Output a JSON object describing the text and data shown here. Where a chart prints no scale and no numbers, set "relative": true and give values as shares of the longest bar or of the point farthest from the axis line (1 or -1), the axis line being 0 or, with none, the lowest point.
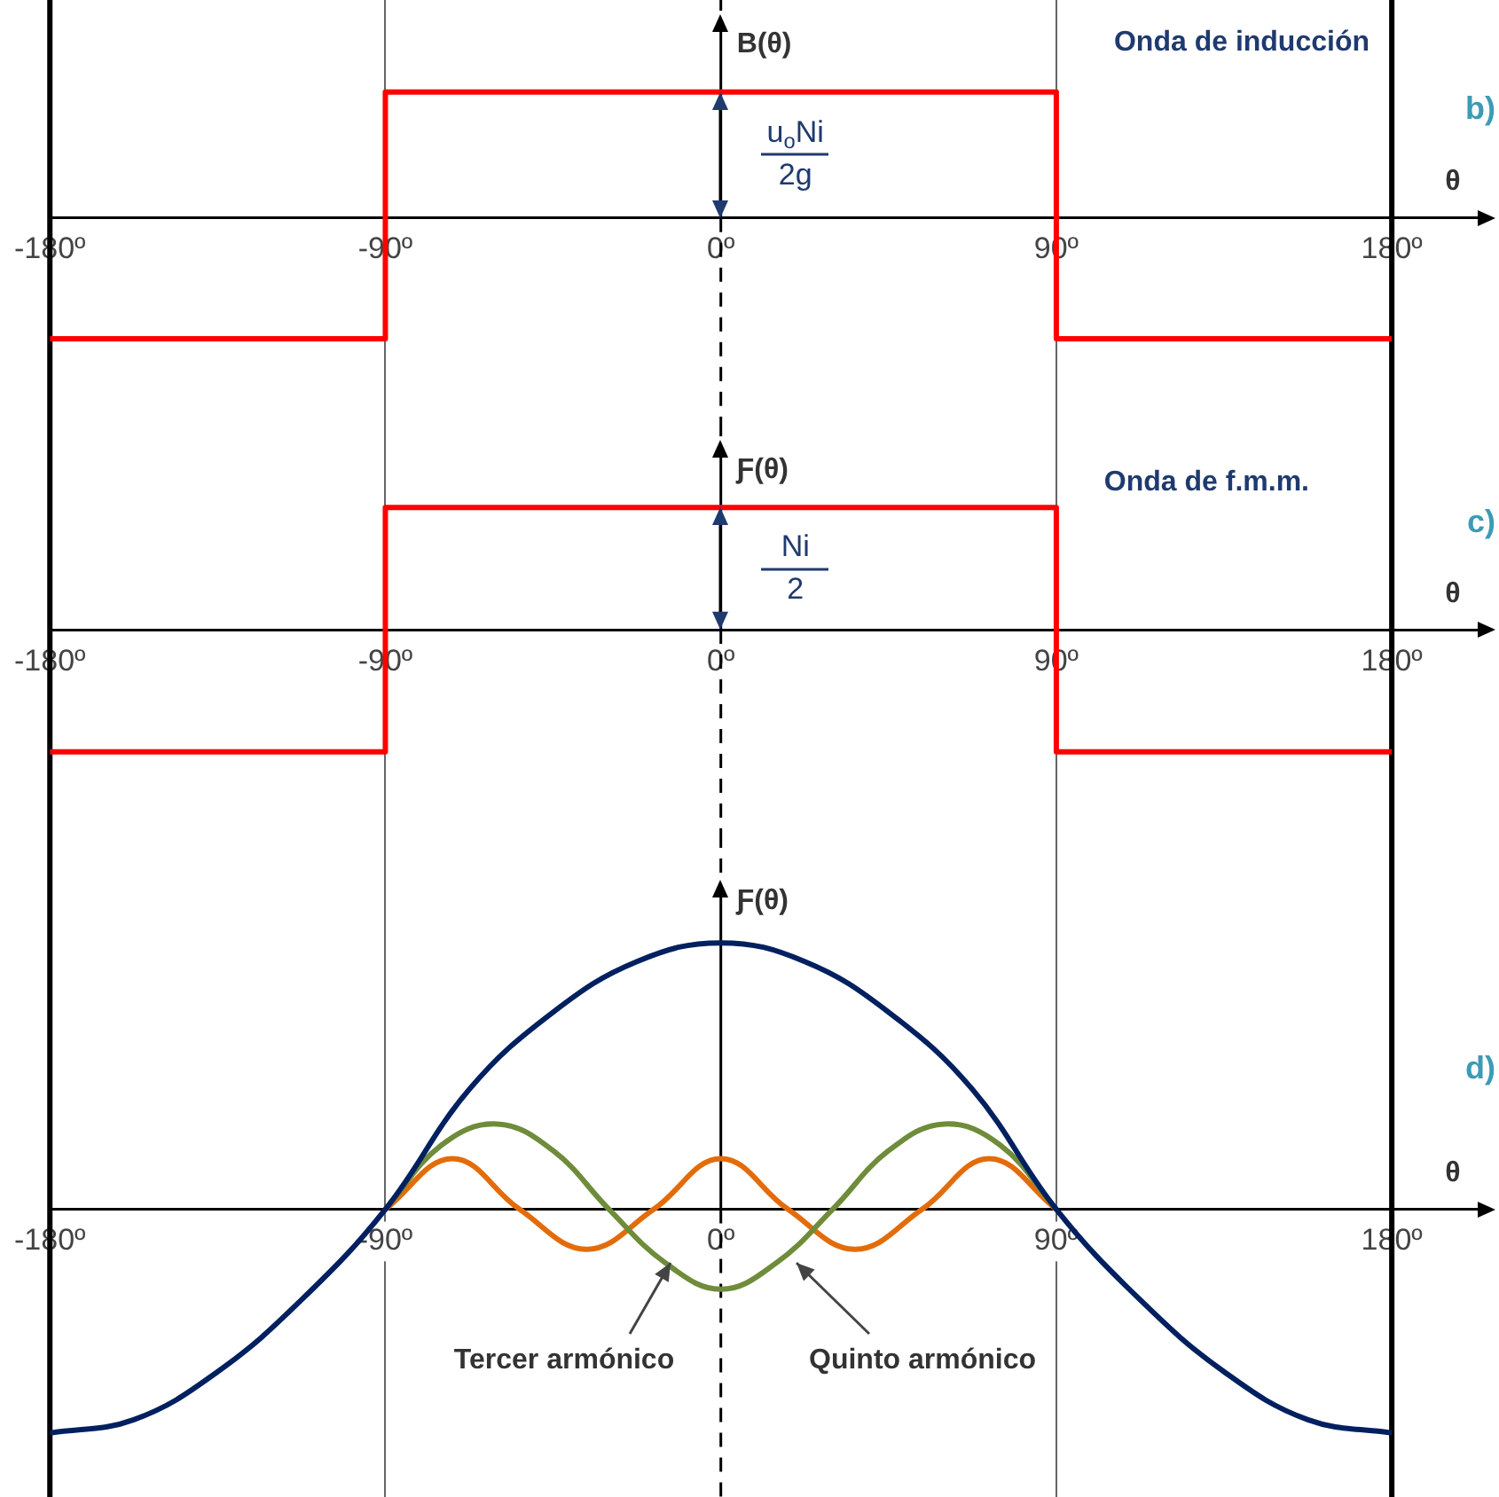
{
  "chart_data": [
    {
      "type": "step",
      "title": "Onda de inducción",
      "xlabel": "θ",
      "ylabel": "B(θ)",
      "relative": true,
      "marker": "none",
      "grid": "x",
      "legend": false,
      "annotations": [
        "b)",
        "u$_{o}$Ni",
        "2g"
      ],
      "xlim": [
        -180,
        204
      ],
      "xticks": [
        {
          "value": -180,
          "label": "-180º"
        },
        {
          "value": -90,
          "label": "-90º"
        },
        {
          "value": 0,
          "label": "0º"
        },
        {
          "value": 90,
          "label": "90º"
        },
        {
          "value": 180,
          "label": "180º"
        }
      ],
      "ref_lines": [
        {
          "axis": "x",
          "value": -180,
          "color": "#000000"
        },
        {
          "axis": "x",
          "value": 0,
          "color": "#000000",
          "line_style": "dashed"
        },
        {
          "axis": "x",
          "value": 180,
          "color": "#000000"
        }
      ],
      "series": [
        {
          "color": "#ff0000",
          "x": [
            -180,
            -90,
            90,
            180
          ],
          "values": [
            -0.96,
            1,
            -0.96,
            -0.96
          ]
        }
      ]
    },
    {
      "type": "step",
      "title": "Onda de f.m.m.",
      "xlabel": "θ",
      "ylabel": "Ƒ(θ)",
      "relative": true,
      "marker": "none",
      "grid": "x",
      "legend": false,
      "annotations": [
        "c)",
        "Ni",
        "2"
      ],
      "xlim": [
        -180,
        204
      ],
      "xticks": [
        {
          "value": -180,
          "label": "-180º"
        },
        {
          "value": -90,
          "label": "-90º"
        },
        {
          "value": 0,
          "label": "0º"
        },
        {
          "value": 90,
          "label": "90º"
        },
        {
          "value": 180,
          "label": "180º"
        }
      ],
      "ref_lines": [
        {
          "axis": "x",
          "value": -180,
          "color": "#000000"
        },
        {
          "axis": "x",
          "value": 0,
          "color": "#000000",
          "line_style": "dashed"
        },
        {
          "axis": "x",
          "value": 180,
          "color": "#000000"
        }
      ],
      "series": [
        {
          "color": "#ff0000",
          "x": [
            -180,
            -90,
            90,
            180
          ],
          "values": [
            -1,
            1,
            -1,
            -1
          ]
        }
      ]
    },
    {
      "type": "line",
      "xlabel": "θ",
      "ylabel": "Ƒ(θ)",
      "relative": true,
      "marker": "none",
      "grid": "x",
      "legend": false,
      "annotations": [
        "d)"
      ],
      "xlim": [
        -180,
        204
      ],
      "xticks": [
        {
          "value": -180,
          "label": "-180º"
        },
        {
          "value": -90,
          "label": "-90º"
        },
        {
          "value": 0,
          "label": "0º"
        },
        {
          "value": 90,
          "label": "90º"
        },
        {
          "value": 180,
          "label": "180º"
        }
      ],
      "ref_lines": [
        {
          "axis": "x",
          "value": -180,
          "color": "#000000"
        },
        {
          "axis": "x",
          "value": 0,
          "color": "#000000",
          "line_style": "dashed"
        },
        {
          "axis": "x",
          "value": 180,
          "color": "#000000"
        }
      ],
      "series": [
        {
          "color": "#002060",
          "x": [
            -180,
            -157.5,
            -135,
            -112.5,
            -90,
            -67.5,
            -45,
            -22.5,
            0,
            22.5,
            45,
            67.5,
            90,
            112.5,
            135,
            157.5,
            180
          ],
          "values": [
            -0.84,
            -0.79,
            -0.61,
            -0.34,
            0,
            0.45,
            0.74,
            0.93,
            1,
            0.93,
            0.74,
            0.45,
            0,
            -0.34,
            -0.61,
            -0.79,
            -0.84
          ]
        },
        {
          "name": "Tercer armónico",
          "color": "#6e8c3a",
          "x": [
            -90,
            -75,
            -60,
            -45,
            -30,
            -15,
            0,
            15,
            30,
            45,
            60,
            75,
            90
          ],
          "values": [
            0,
            0.24,
            0.32,
            0.22,
            0,
            -0.2,
            -0.3,
            -0.2,
            0,
            0.22,
            0.32,
            0.24,
            0
          ]
        },
        {
          "name": "Quinto armónico",
          "color": "#e36c0a",
          "x": [
            -90,
            -72,
            -54,
            -36,
            -18,
            0,
            18,
            36,
            54,
            72,
            90
          ],
          "values": [
            0,
            0.19,
            0,
            -0.15,
            0,
            0.19,
            0,
            -0.15,
            0,
            0.19,
            0
          ]
        }
      ]
    }
  ]
}
